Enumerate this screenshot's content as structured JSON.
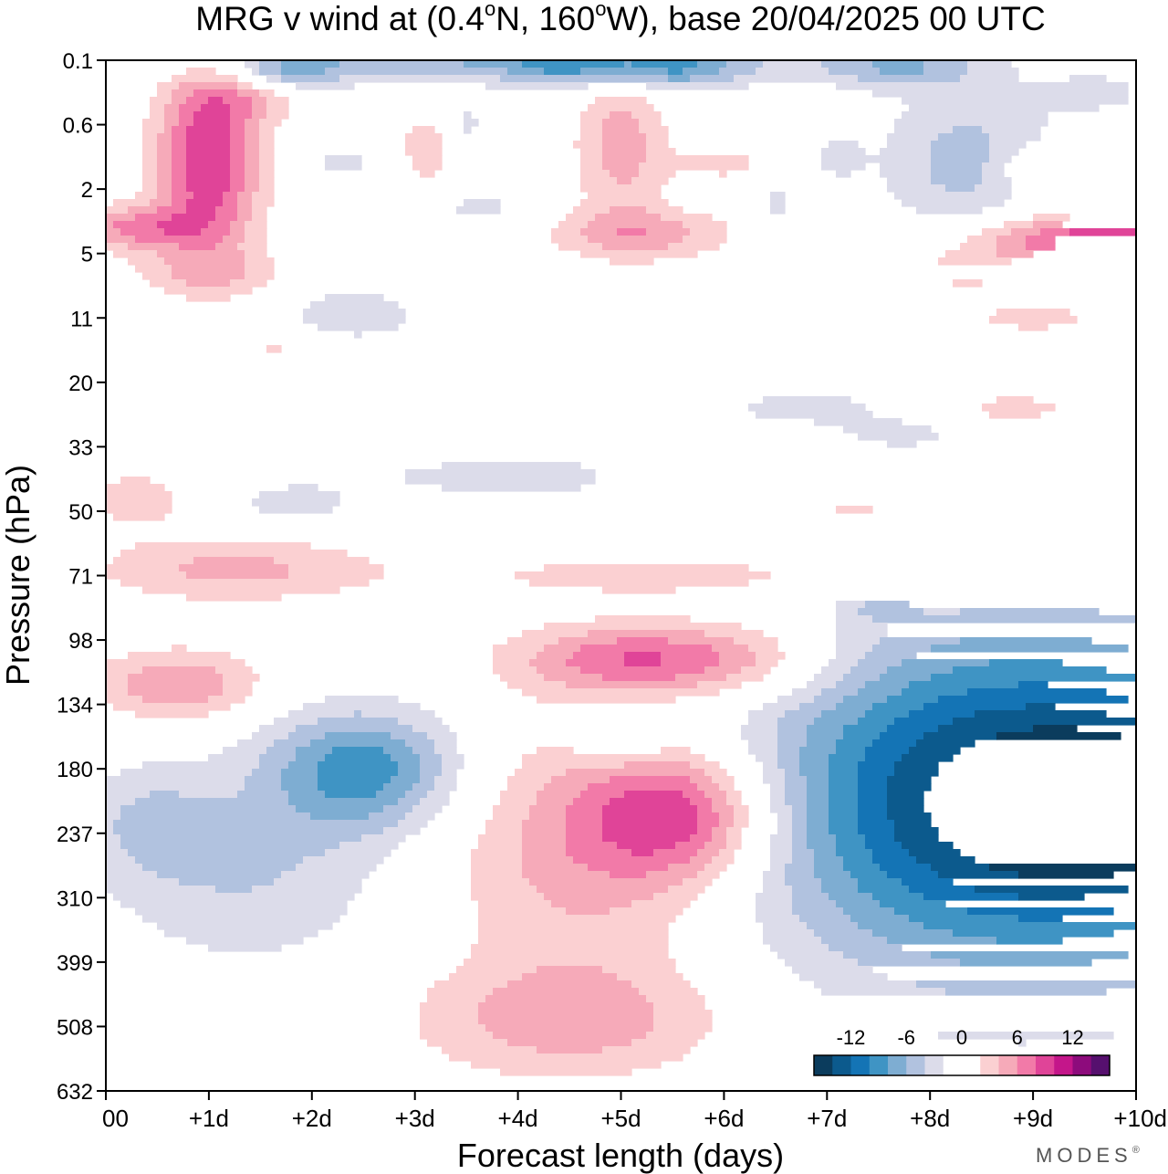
{
  "chart_data": {
    "type": "heatmap",
    "title_prefix": "MRG v wind at (0.4",
    "title_deg1": "o",
    "title_mid": "N, 160",
    "title_deg2": "o",
    "title_suffix": "W),  base 20/04/2025  00 UTC",
    "xlabel": "Forecast length (days)",
    "ylabel": "Pressure (hPa)",
    "x_ticks": [
      "00",
      "+1d",
      "+2d",
      "+3d",
      "+4d",
      "+5d",
      "+6d",
      "+7d",
      "+8d",
      "+9d",
      "+10d"
    ],
    "y_ticks": [
      "0.1",
      "0.6",
      "2",
      "5",
      "11",
      "20",
      "33",
      "50",
      "71",
      "98",
      "134",
      "180",
      "237",
      "310",
      "399",
      "508",
      "632"
    ],
    "xlim": [
      0,
      10
    ],
    "colorbar": {
      "tick_labels": [
        "-12",
        "-6",
        "0",
        "6",
        "12"
      ],
      "tick_values": [
        -12,
        -6,
        0,
        6,
        12
      ],
      "range": [
        -16,
        16
      ],
      "bins": [
        {
          "lo": -16,
          "hi": -14,
          "color": "#0b3c5d"
        },
        {
          "lo": -14,
          "hi": -12,
          "color": "#0c5a8d"
        },
        {
          "lo": -12,
          "hi": -10,
          "color": "#1474b5"
        },
        {
          "lo": -10,
          "hi": -8,
          "color": "#3f94c4"
        },
        {
          "lo": -8,
          "hi": -6,
          "color": "#7eadd2"
        },
        {
          "lo": -6,
          "hi": -4,
          "color": "#b1c2df"
        },
        {
          "lo": -4,
          "hi": -2,
          "color": "#dcdcea"
        },
        {
          "lo": -2,
          "hi": 2,
          "color": "#ffffff"
        },
        {
          "lo": 2,
          "hi": 4,
          "color": "#fbd0d2"
        },
        {
          "lo": 4,
          "hi": 6,
          "color": "#f6aab9"
        },
        {
          "lo": 6,
          "hi": 8,
          "color": "#f27aa8"
        },
        {
          "lo": 8,
          "hi": 10,
          "color": "#e04498"
        },
        {
          "lo": 10,
          "hi": 12,
          "color": "#c4168a"
        },
        {
          "lo": 12,
          "hi": 14,
          "color": "#8d0b7c"
        },
        {
          "lo": 14,
          "hi": 16,
          "color": "#56106e"
        }
      ]
    },
    "features": [
      {
        "kind": "neg",
        "x": 8.9,
        "y": 11.5,
        "rx": 2.5,
        "ry": 2.6,
        "amp": 16
      },
      {
        "kind": "neg",
        "x": 10.0,
        "y": 11.6,
        "rx": 1.1,
        "ry": 1.2,
        "amp": 5
      },
      {
        "kind": "neg",
        "x": 2.5,
        "y": 11.0,
        "rx": 0.95,
        "ry": 0.95,
        "amp": 9
      },
      {
        "kind": "neg",
        "x": 1.4,
        "y": 12.6,
        "rx": 1.4,
        "ry": 1.5,
        "amp": 4
      },
      {
        "kind": "neg",
        "x": 0.4,
        "y": 11.8,
        "rx": 0.7,
        "ry": 0.9,
        "amp": 3.2
      },
      {
        "kind": "neg",
        "x": 5.0,
        "y": 10.5,
        "rx": 0.5,
        "ry": 0.45,
        "amp": 3.5
      },
      {
        "kind": "neg",
        "x": 4.5,
        "y": 6.3,
        "rx": 2.4,
        "ry": 0.5,
        "amp": 4.5
      },
      {
        "kind": "neg",
        "x": 1.8,
        "y": 6.9,
        "rx": 0.6,
        "ry": 0.3,
        "amp": 3
      },
      {
        "kind": "neg",
        "x": 6.8,
        "y": 5.4,
        "rx": 0.9,
        "ry": 0.3,
        "amp": 3
      },
      {
        "kind": "neg",
        "x": 7.7,
        "y": 5.8,
        "rx": 0.6,
        "ry": 0.25,
        "amp": 2.8
      },
      {
        "kind": "neg",
        "x": 7.5,
        "y": 8.5,
        "rx": 0.35,
        "ry": 0.2,
        "amp": 2.6
      },
      {
        "kind": "neg",
        "x": 3.8,
        "y": 0.0,
        "rx": 3.0,
        "ry": 0.35,
        "amp": 6
      },
      {
        "kind": "neg",
        "x": 4.5,
        "y": 0.1,
        "rx": 0.6,
        "ry": 0.3,
        "amp": 4
      },
      {
        "kind": "neg",
        "x": 5.5,
        "y": 0.15,
        "rx": 0.7,
        "ry": 0.35,
        "amp": 5
      },
      {
        "kind": "neg",
        "x": 7.7,
        "y": 0.1,
        "rx": 0.8,
        "ry": 0.35,
        "amp": 5
      },
      {
        "kind": "neg",
        "x": 1.7,
        "y": 0.2,
        "rx": 0.6,
        "ry": 0.3,
        "amp": 5
      },
      {
        "kind": "neg",
        "x": 8.4,
        "y": 1.6,
        "rx": 0.9,
        "ry": 1.2,
        "amp": 5
      },
      {
        "kind": "neg",
        "x": 9.6,
        "y": 0.5,
        "rx": 0.5,
        "ry": 0.3,
        "amp": 3
      },
      {
        "kind": "neg",
        "x": 2.4,
        "y": 4.0,
        "rx": 0.6,
        "ry": 0.5,
        "amp": 4
      },
      {
        "kind": "neg",
        "x": 3.6,
        "y": 2.3,
        "rx": 0.6,
        "ry": 0.3,
        "amp": 2.6
      },
      {
        "kind": "neg",
        "x": 2.3,
        "y": 1.6,
        "rx": 0.4,
        "ry": 0.3,
        "amp": 2.6
      },
      {
        "kind": "neg",
        "x": 6.5,
        "y": 2.3,
        "rx": 0.2,
        "ry": 0.5,
        "amp": 2.6
      },
      {
        "kind": "neg",
        "x": 7.1,
        "y": 1.5,
        "rx": 0.25,
        "ry": 0.35,
        "amp": 2.6
      },
      {
        "kind": "neg",
        "x": 3.5,
        "y": 1.0,
        "rx": 0.2,
        "ry": 0.4,
        "amp": 2.6
      },
      {
        "kind": "pos",
        "x": 4.7,
        "y": 12.2,
        "rx": 1.4,
        "ry": 2.0,
        "amp": 5.5
      },
      {
        "kind": "pos",
        "x": 4.5,
        "y": 14.9,
        "rx": 1.5,
        "ry": 0.9,
        "amp": 5
      },
      {
        "kind": "pos",
        "x": 5.6,
        "y": 11.7,
        "rx": 0.9,
        "ry": 1.0,
        "amp": 8.5
      },
      {
        "kind": "pos",
        "x": 5.2,
        "y": 9.3,
        "rx": 1.2,
        "ry": 0.55,
        "amp": 8
      },
      {
        "kind": "pos",
        "x": 6.4,
        "y": 9.3,
        "rx": 0.9,
        "ry": 0.7,
        "amp": 3
      },
      {
        "kind": "pos",
        "x": 0.7,
        "y": 9.7,
        "rx": 0.8,
        "ry": 0.55,
        "amp": 6
      },
      {
        "kind": "pos",
        "x": 1.2,
        "y": 7.9,
        "rx": 1.3,
        "ry": 0.5,
        "amp": 4.5
      },
      {
        "kind": "pos",
        "x": 5.8,
        "y": 8.0,
        "rx": 2.8,
        "ry": 0.4,
        "amp": 3
      },
      {
        "kind": "pos",
        "x": 4.0,
        "y": 6.0,
        "rx": 2.6,
        "ry": 0.4,
        "amp": 2.7
      },
      {
        "kind": "pos",
        "x": 6.0,
        "y": 6.4,
        "rx": 1.2,
        "ry": 0.35,
        "amp": 4.3
      },
      {
        "kind": "pos",
        "x": 7.3,
        "y": 7.0,
        "rx": 1.0,
        "ry": 0.3,
        "amp": 2.7
      },
      {
        "kind": "pos",
        "x": 1.0,
        "y": 1.5,
        "rx": 0.5,
        "ry": 1.6,
        "amp": 10
      },
      {
        "kind": "pos",
        "x": 0.3,
        "y": 2.6,
        "rx": 0.6,
        "ry": 0.35,
        "amp": 6.5
      },
      {
        "kind": "pos",
        "x": 5.0,
        "y": 1.3,
        "rx": 0.45,
        "ry": 1.2,
        "amp": 5
      },
      {
        "kind": "pos",
        "x": 5.2,
        "y": 2.7,
        "rx": 0.9,
        "ry": 0.4,
        "amp": 5
      },
      {
        "kind": "pos",
        "x": 9.6,
        "y": 2.8,
        "rx": 1.2,
        "ry": 0.45,
        "amp": 10
      },
      {
        "kind": "pos",
        "x": 9.0,
        "y": 1.7,
        "rx": 0.4,
        "ry": 0.4,
        "amp": 3.5
      },
      {
        "kind": "pos",
        "x": 8.3,
        "y": 3.3,
        "rx": 0.6,
        "ry": 0.35,
        "amp": 2.6
      },
      {
        "kind": "pos",
        "x": 1.0,
        "y": 3.3,
        "rx": 0.9,
        "ry": 0.35,
        "amp": 2.7
      },
      {
        "kind": "pos",
        "x": 2.0,
        "y": 4.5,
        "rx": 1.0,
        "ry": 0.3,
        "amp": 2.6
      },
      {
        "kind": "pos",
        "x": 3.1,
        "y": 1.4,
        "rx": 0.3,
        "ry": 0.7,
        "amp": 3
      },
      {
        "kind": "pos",
        "x": 6.0,
        "y": 1.6,
        "rx": 0.5,
        "ry": 0.3,
        "amp": 2.6
      },
      {
        "kind": "pos",
        "x": 8.8,
        "y": 5.4,
        "rx": 0.8,
        "ry": 0.3,
        "amp": 2.6
      },
      {
        "kind": "pos",
        "x": 9.0,
        "y": 4.0,
        "rx": 0.9,
        "ry": 0.3,
        "amp": 2.6
      },
      {
        "kind": "pos",
        "x": 0.3,
        "y": 6.8,
        "rx": 0.6,
        "ry": 0.5,
        "amp": 3
      },
      {
        "kind": "pos",
        "x": 1.5,
        "y": 0.5,
        "rx": 0.5,
        "ry": 0.4,
        "amp": 3
      }
    ]
  },
  "branding": {
    "logo_text": "MODES",
    "logo_mark": "®"
  }
}
